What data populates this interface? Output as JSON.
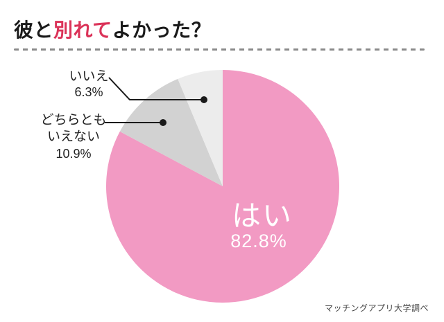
{
  "page": {
    "background": "#ffffff"
  },
  "header": {
    "title_parts": [
      {
        "text": "彼と"
      },
      {
        "text": "別れて"
      },
      {
        "text": "よかった？"
      }
    ],
    "accent_color": "#db3258",
    "text_color": "#1a1a1a"
  },
  "chart_data": {
    "type": "pie",
    "title": "彼と別れてよかった？",
    "unit": "%",
    "start_angle_deg": 0,
    "direction": "clockwise",
    "legend_position": "none",
    "source_note": "マッチングアプリ大学調べ",
    "slices": [
      {
        "label": "はい",
        "value_pct": 82.8,
        "value_label": "82.8%",
        "color": "#f29ac3",
        "label_placement": "inside",
        "label_color": "#ffffff"
      },
      {
        "label": "どちらともいえない",
        "label_lines": [
          "どちらとも",
          "いえない"
        ],
        "value_pct": 10.9,
        "value_label": "10.9%",
        "color": "#d2d2d2",
        "label_placement": "outside-left",
        "label_color": "#222222"
      },
      {
        "label": "いいえ",
        "label_lines": [
          "いいえ"
        ],
        "value_pct": 6.3,
        "value_label": "6.3%",
        "color": "#ececec",
        "label_placement": "outside-top-left",
        "label_color": "#222222"
      }
    ],
    "leader_line_color": "#1a1a1a"
  },
  "footer": {
    "credit": "マッチングアプリ大学調べ"
  }
}
